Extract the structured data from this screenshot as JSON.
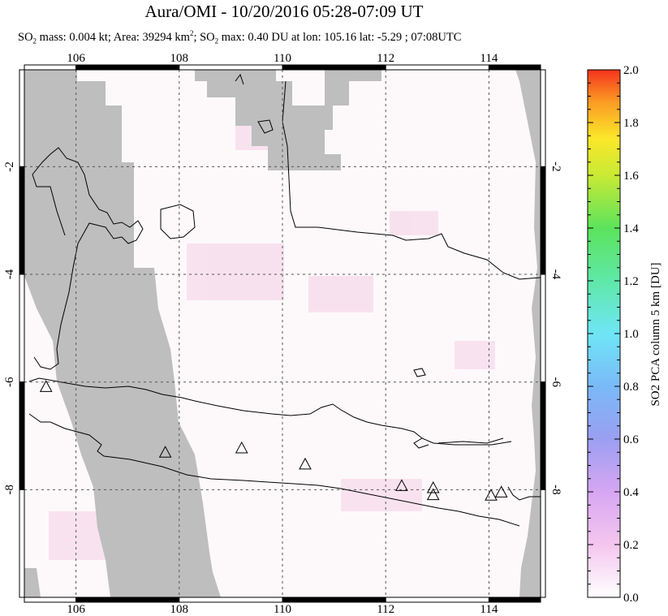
{
  "chart_data": {
    "type": "heatmap",
    "title": "Aura/OMI - 10/20/2016 05:28-07:09 UT",
    "subtitle": {
      "mass_label": "SO",
      "mass_sub": "2",
      "mass_rest": " mass: 0.004 kt; Area: 39294 km",
      "area_sup": "2",
      "max_pre": "; SO",
      "max_sub": "2",
      "max_rest": " max: 0.40 DU at lon: 105.16 lat: -5.29 ; 07:08UTC"
    },
    "xlim": [
      105,
      115
    ],
    "ylim": [
      -10,
      -0.2
    ],
    "x_ticks": [
      "106",
      "108",
      "110",
      "112",
      "114"
    ],
    "x_tick_values": [
      106,
      108,
      110,
      112,
      114
    ],
    "y_ticks": [
      "-2",
      "-4",
      "-6",
      "-8"
    ],
    "y_tick_values": [
      -2,
      -4,
      -6,
      -8
    ],
    "grid": true,
    "colorbar": {
      "label": "SO2 PCA column 5 km [DU]",
      "range": [
        0.0,
        2.0
      ],
      "tick_labels": [
        "2.0",
        "1.8",
        "1.6",
        "1.4",
        "1.2",
        "1.0",
        "0.8",
        "0.6",
        "0.4",
        "0.2",
        "0.0"
      ],
      "tick_values": [
        2.0,
        1.8,
        1.6,
        1.4,
        1.2,
        1.0,
        0.8,
        0.6,
        0.4,
        0.2,
        0.0
      ]
    },
    "max_value": {
      "value": 0.4,
      "unit": "DU",
      "lon": 105.16,
      "lat": -5.29
    },
    "volcanoes": [
      {
        "lon": 105.42,
        "lat": -6.1
      },
      {
        "lon": 107.73,
        "lat": -7.32
      },
      {
        "lon": 109.21,
        "lat": -7.24
      },
      {
        "lon": 110.44,
        "lat": -7.54
      },
      {
        "lon": 112.31,
        "lat": -7.94
      },
      {
        "lon": 112.92,
        "lat": -7.98
      },
      {
        "lon": 112.92,
        "lat": -8.11
      },
      {
        "lon": 114.04,
        "lat": -8.12
      },
      {
        "lon": 114.24,
        "lat": -8.06
      }
    ]
  },
  "colors": {
    "no_data": "#bebebe",
    "background": "#fdf9fb",
    "low_pink": "#f7dcec"
  }
}
